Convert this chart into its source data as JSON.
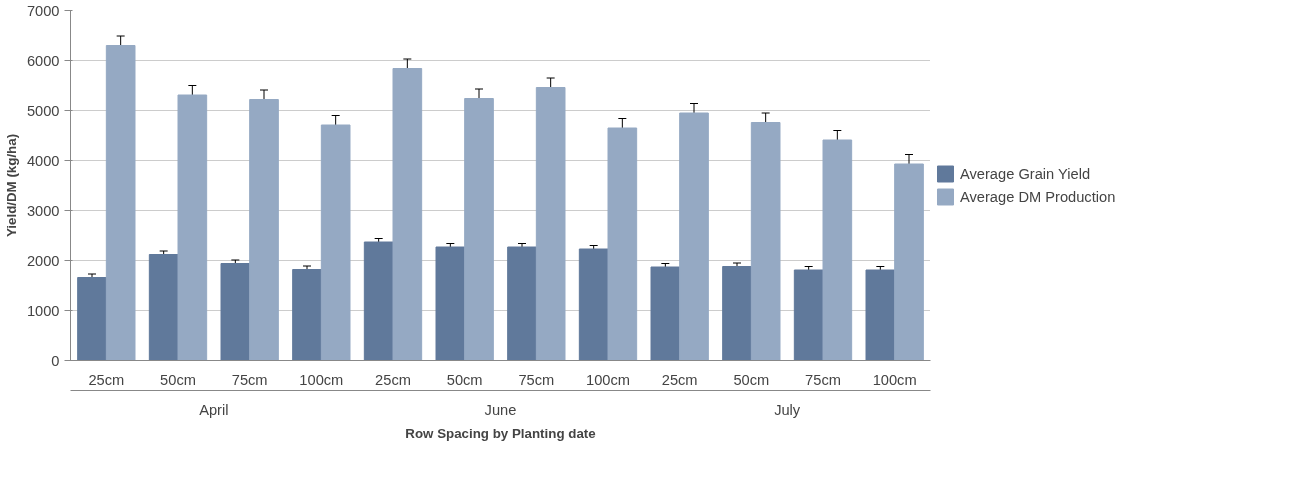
{
  "chart_data": {
    "type": "bar",
    "xlabel": "Row Spacing by Planting date",
    "ylabel": "Yield/DM (kg/ha)",
    "categories": [
      "25cm",
      "50cm",
      "75cm",
      "100cm",
      "25cm",
      "50cm",
      "75cm",
      "100cm",
      "25cm",
      "50cm",
      "75cm",
      "100cm"
    ],
    "annotations": [
      "April",
      "June",
      "July"
    ],
    "series": [
      {
        "name": "Average Grain Yield",
        "color": "#60799b",
        "values": [
          1660,
          2120,
          1940,
          1820,
          2370,
          2270,
          2270,
          2230,
          1870,
          1880,
          1810,
          1810
        ],
        "errors": [
          70,
          70,
          70,
          70,
          70,
          70,
          70,
          70,
          70,
          70,
          70,
          70
        ]
      },
      {
        "name": "Average DM Production",
        "color": "#95a9c3",
        "values": [
          6300,
          5310,
          5220,
          4710,
          5840,
          5240,
          5460,
          4650,
          4950,
          4760,
          4410,
          3930
        ],
        "errors": [
          190,
          190,
          190,
          190,
          190,
          190,
          190,
          190,
          190,
          190,
          190,
          190
        ]
      }
    ],
    "ylim": [
      0,
      7000
    ],
    "yticks": [
      0,
      1000,
      2000,
      3000,
      4000,
      5000,
      6000,
      7000
    ],
    "grid": "y",
    "legend": "right"
  }
}
